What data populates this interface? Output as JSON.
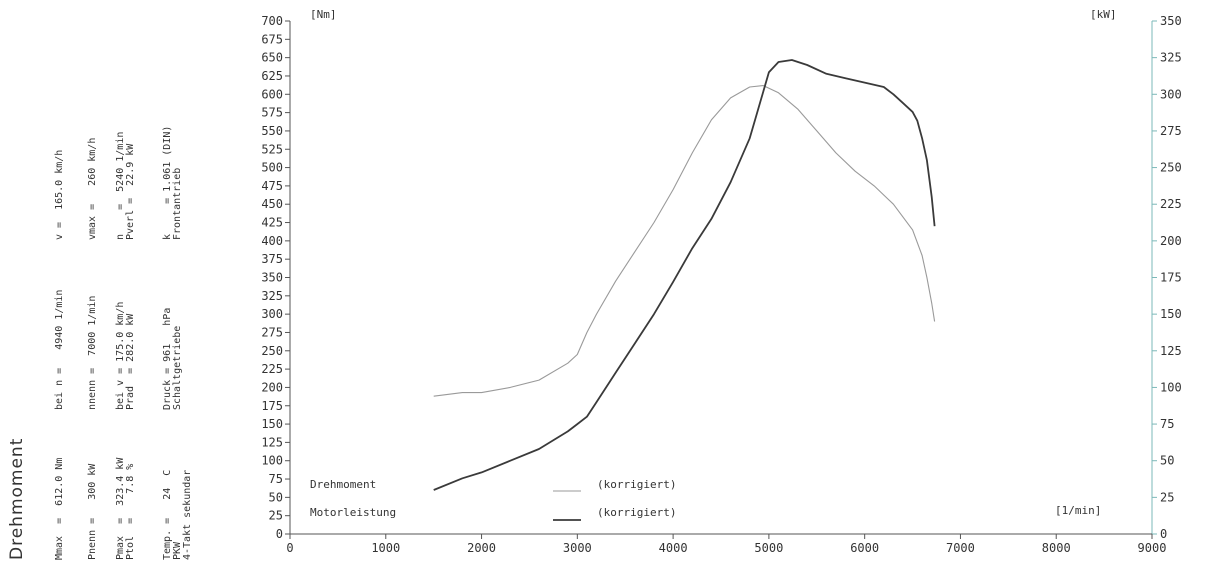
{
  "sidebar": {
    "title": "Drehmoment",
    "rows": [
      {
        "c1": "Mmax  =  612.0 Nm",
        "c2": "bei n =   4940 1/min",
        "c3": "v =  165.0 km/h"
      },
      {
        "c1": "Pnenn =   300 kW",
        "c2": "nnenn =  7000 1/min",
        "c3": "vmax =   260 km/h"
      },
      {
        "c1": "Pmax  =  323.4 kW\nPtol  =    7.8 %",
        "c2": "bei v = 175.0 km/h\nPrad  = 282.0 kW",
        "c3": "n    =  5240 1/min\nPverl =  22.9 kW"
      },
      {
        "c1": "Temp. =   24  C\nPKW\n4-Takt sekundar",
        "c2": "Druck = 961   hPa\nSchaltgetriebe",
        "c3": "k     = 1.061 (DIN)\nFrontantrieb"
      }
    ]
  },
  "chart_data": {
    "type": "line",
    "xlabel": "[1/min]",
    "ylabel_left": "[Nm]",
    "ylabel_right": "[kW]",
    "xlim": [
      0,
      9000
    ],
    "ylim_left": [
      0,
      700
    ],
    "ylim_right": [
      0,
      350
    ],
    "x_ticks": [
      "0",
      "1000",
      "2000",
      "3000",
      "4000",
      "5000",
      "6000",
      "7000",
      "8000",
      "9000"
    ],
    "y_ticks_left": [
      "0",
      "25",
      "50",
      "75",
      "100",
      "125",
      "150",
      "175",
      "200",
      "225",
      "250",
      "275",
      "300",
      "325",
      "350",
      "375",
      "400",
      "425",
      "450",
      "475",
      "500",
      "525",
      "550",
      "575",
      "600",
      "625",
      "650",
      "675",
      "700"
    ],
    "y_ticks_right": [
      "0",
      "25",
      "50",
      "75",
      "100",
      "125",
      "150",
      "175",
      "200",
      "225",
      "250",
      "275",
      "300",
      "325",
      "350"
    ],
    "grid": false,
    "legend_position": "bottom-left",
    "series": [
      {
        "name": "Drehmoment",
        "note": "(korrigiert)",
        "axis": "left",
        "color": "#9a9a9a",
        "x": [
          1500,
          1800,
          2000,
          2300,
          2600,
          2900,
          3000,
          3100,
          3200,
          3400,
          3600,
          3800,
          4000,
          4200,
          4400,
          4600,
          4800,
          4940,
          5100,
          5300,
          5500,
          5700,
          5900,
          6100,
          6300,
          6500,
          6600,
          6650,
          6700,
          6730
        ],
        "values": [
          188,
          193,
          193,
          200,
          210,
          233,
          245,
          275,
          300,
          345,
          385,
          425,
          470,
          520,
          565,
          595,
          610,
          612,
          602,
          580,
          550,
          520,
          495,
          475,
          450,
          415,
          380,
          350,
          315,
          290
        ]
      },
      {
        "name": "Motorleistung",
        "note": "(korrigiert)",
        "axis": "right",
        "color": "#3a3a3a",
        "x": [
          1500,
          1800,
          2000,
          2300,
          2600,
          2900,
          3000,
          3100,
          3200,
          3400,
          3600,
          3800,
          4000,
          4200,
          4400,
          4600,
          4800,
          5000,
          5100,
          5240,
          5400,
          5600,
          5800,
          6000,
          6200,
          6300,
          6400,
          6500,
          6550,
          6600,
          6650,
          6700,
          6730
        ],
        "values": [
          30,
          38,
          42,
          50,
          58,
          70,
          75,
          80,
          90,
          110,
          130,
          150,
          172,
          195,
          215,
          240,
          270,
          315,
          322,
          323.4,
          320,
          314,
          311,
          308,
          305,
          300,
          294,
          288,
          282,
          270,
          255,
          230,
          210
        ]
      }
    ]
  }
}
